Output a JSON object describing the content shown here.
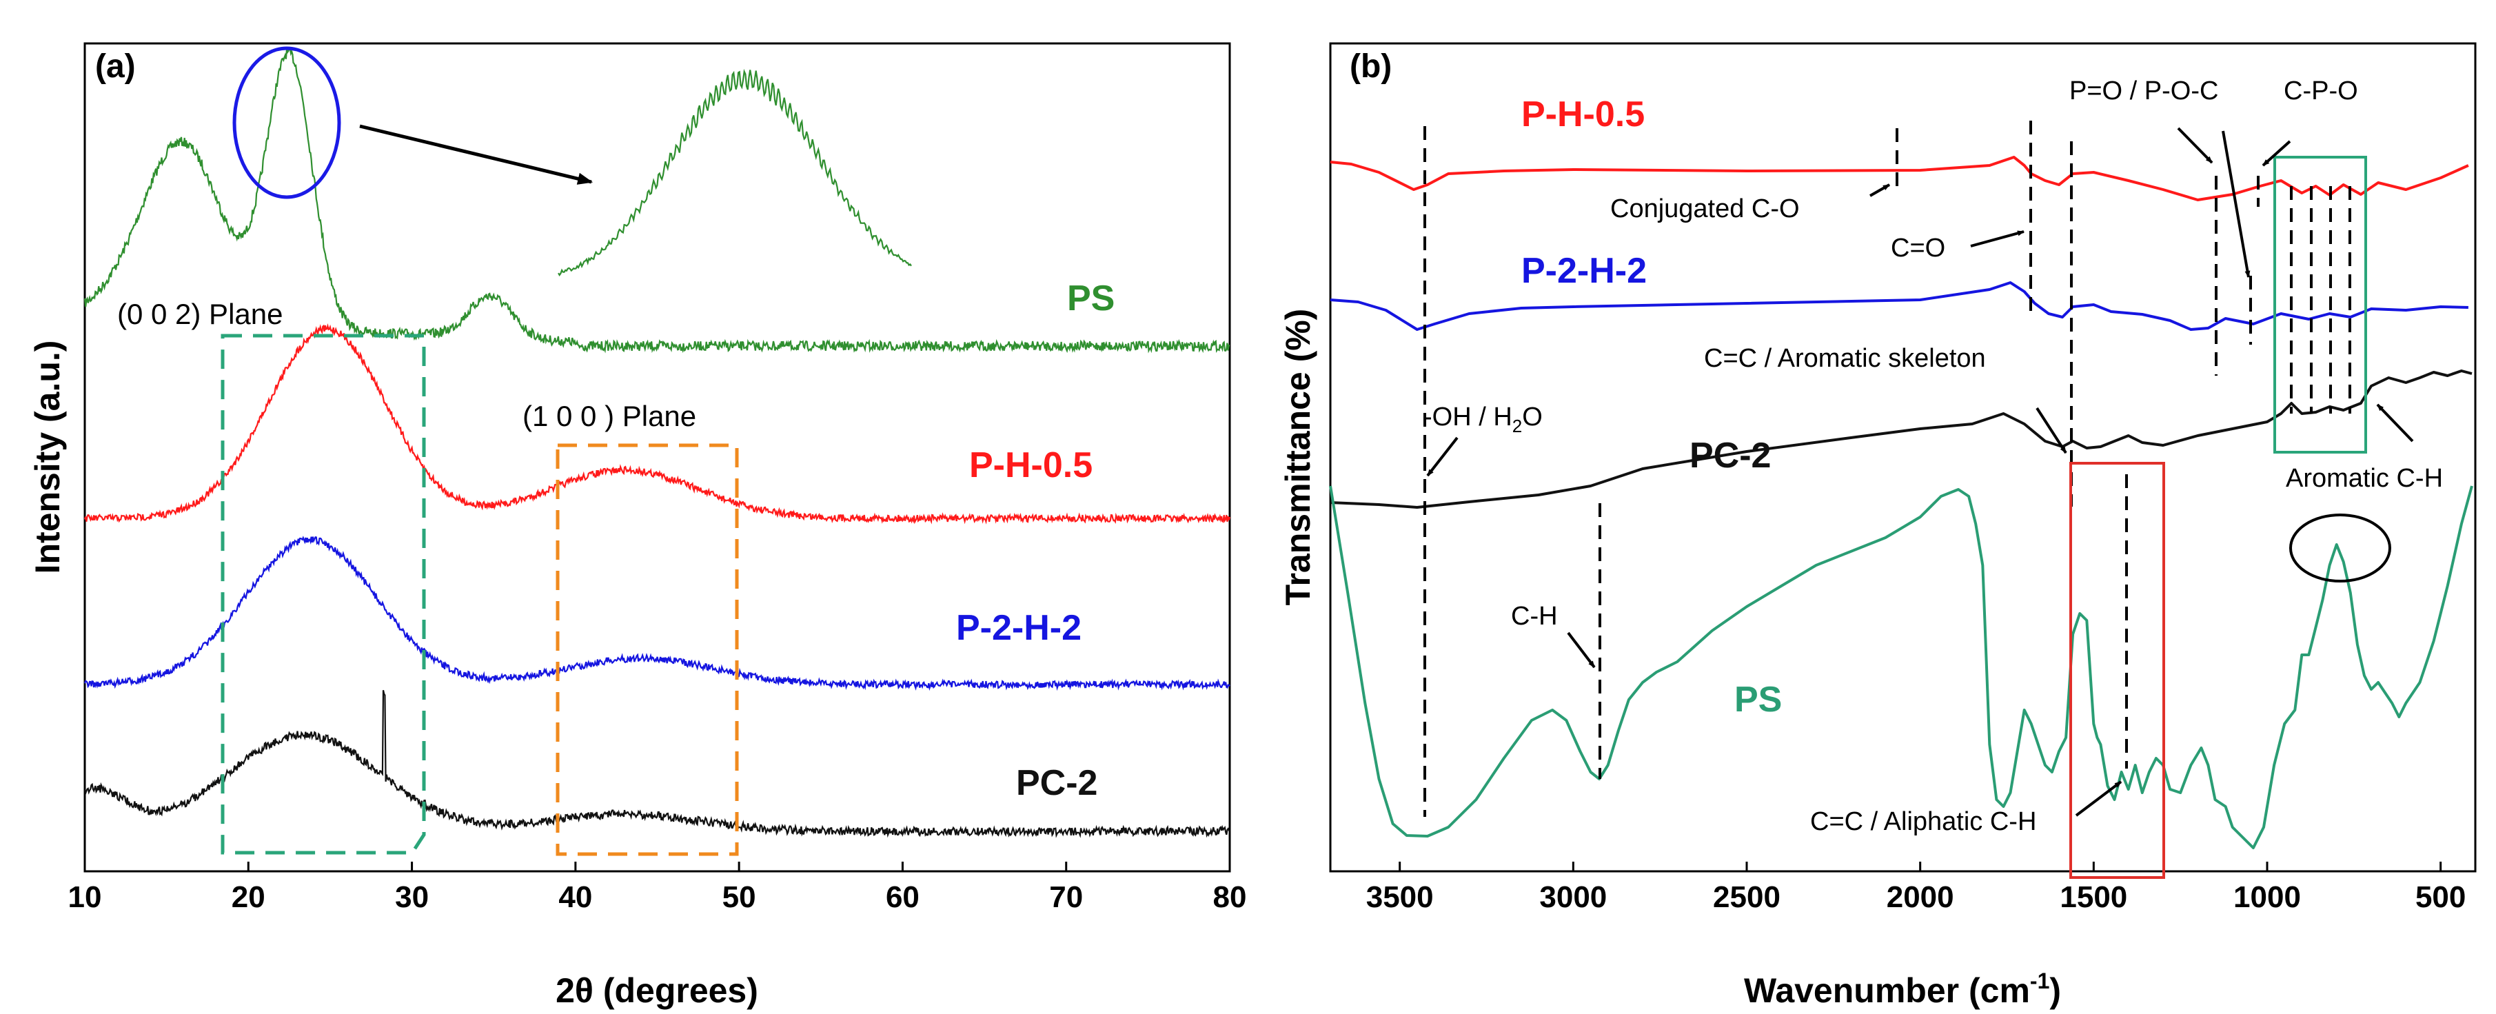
{
  "chart_data": [
    {
      "type": "line",
      "panel": "(a)",
      "xlabel": "2θ (degrees)",
      "ylabel": "Intensity (a.u.)",
      "xlim": [
        10,
        80
      ],
      "xticks": [
        10,
        20,
        30,
        40,
        50,
        60,
        70,
        80
      ],
      "yticks": false,
      "series": [
        {
          "name": "PS",
          "color": "#2f8f2f",
          "peaks": [
            {
              "x": 16.0,
              "h": 0.4
            },
            {
              "x": 22.5,
              "h": 0.95
            },
            {
              "x": 34.8,
              "h": 0.06
            }
          ],
          "baseline": "offset-top"
        },
        {
          "name": "P-H-0.5",
          "color": "#ff1a1a",
          "peaks": [
            {
              "x": 24.8,
              "h": 0.58
            },
            {
              "x": 43.0,
              "h": 0.08
            }
          ]
        },
        {
          "name": "P-2-H-2",
          "color": "#1515e0",
          "peaks": [
            {
              "x": 23.8,
              "h": 0.43
            },
            {
              "x": 44.2,
              "h": 0.04
            }
          ]
        },
        {
          "name": "PC-2",
          "color": "#111111",
          "peaks": [
            {
              "x": 23.5,
              "h": 0.22
            },
            {
              "x": 28.3,
              "h": 0.45
            },
            {
              "x": 43.0,
              "h": 0.03
            }
          ]
        }
      ],
      "annotations": [
        "(0 0 2) Plane",
        "(1 0 0 ) Plane"
      ],
      "inset": "zoomed PS peak (green)"
    },
    {
      "type": "line",
      "panel": "(b)",
      "xlabel": "Wavenumber (cm-1)",
      "ylabel": "Transmittance (%)",
      "xlim": [
        3700,
        400
      ],
      "xticks": [
        3500,
        3000,
        2500,
        2000,
        1500,
        1000,
        500
      ],
      "yticks": false,
      "series": [
        {
          "name": "P-H-0.5",
          "color": "#ff1a1a"
        },
        {
          "name": "P-2-H-2",
          "color": "#1515e0"
        },
        {
          "name": "PC-2",
          "color": "#111111"
        },
        {
          "name": "PS",
          "color": "#2a9d74"
        }
      ],
      "annotations": [
        "Conjugated C-O",
        "C=O",
        "P=O / P-O-C",
        "C-P-O",
        "C=C / Aromatic skeleton",
        "-OH / H2O",
        "C-H",
        "C=C / Aliphatic C-H",
        "Aromatic C-H"
      ]
    }
  ],
  "panel_a": {
    "tag": "(a)",
    "ylabel": "Intensity (a.u.)",
    "xlabel": "2θ (degrees)",
    "ticks": [
      "10",
      "20",
      "30",
      "40",
      "50",
      "60",
      "70",
      "80"
    ],
    "labels": {
      "ps": "PS",
      "ph": "P-H-0.5",
      "p2": "P-2-H-2",
      "pc": "PC-2"
    },
    "plane002": "(0 0 2) Plane",
    "plane100": "(1 0 0 ) Plane"
  },
  "panel_b": {
    "tag": "(b)",
    "ylabel": "Transmittance (%)",
    "xlabel_main": "Wavenumber (cm",
    "xlabel_sup": "-1",
    "xlabel_end": ")",
    "ticks": [
      "3500",
      "3000",
      "2500",
      "2000",
      "1500",
      "1000",
      "500"
    ],
    "labels": {
      "ph": "P-H-0.5",
      "p2": "P-2-H-2",
      "pc": "PC-2",
      "ps": "PS"
    },
    "ann": {
      "conj": "Conjugated C-O",
      "co": "C=O",
      "po": "P=O / P-O-C",
      "cpo": "C-P-O",
      "arom_sk": "C=C / Aromatic skeleton",
      "oh": "-OH / H",
      "oh_sub": "2",
      "oh_end": "O",
      "ch": "C-H",
      "aliph": "C=C / Aliphatic C-H",
      "arom_ch": "Aromatic C-H"
    }
  }
}
